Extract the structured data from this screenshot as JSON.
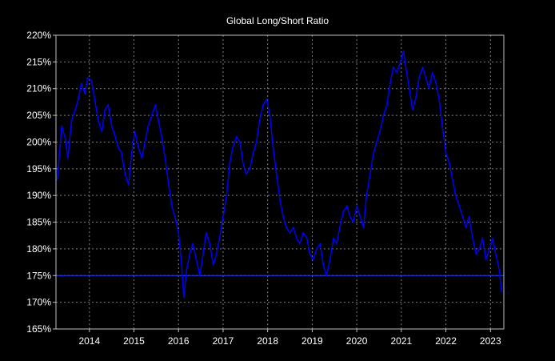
{
  "chart_data": {
    "type": "line",
    "title": "Global Long/Short Ratio",
    "xlabel": "",
    "ylabel": "",
    "x_ticks": [
      "2014",
      "2015",
      "2016",
      "2017",
      "2018",
      "2019",
      "2020",
      "2021",
      "2022",
      "2023"
    ],
    "y_ticks": [
      "220%",
      "215%",
      "210%",
      "205%",
      "200%",
      "195%",
      "190%",
      "185%",
      "180%",
      "175%",
      "170%",
      "165%"
    ],
    "xlim": [
      2013.25,
      2023.3
    ],
    "ylim": [
      165,
      220
    ],
    "grid": true,
    "reference_line": 175,
    "colors": {
      "background": "#000000",
      "series": "#0000ff",
      "reference": "#1e3cff",
      "grid": "#7f7f7f",
      "axis": "#c0c0c0",
      "text": "#ffffff"
    },
    "series": [
      {
        "x": [
          2013.28,
          2013.33,
          2013.38,
          2013.45,
          2013.52,
          2013.6,
          2013.68,
          2013.75,
          2013.82,
          2013.9,
          2013.96,
          2014.05,
          2014.12,
          2014.2,
          2014.28,
          2014.35,
          2014.42,
          2014.5,
          2014.58,
          2014.65,
          2014.72,
          2014.8,
          2014.88,
          2014.95,
          2015.02,
          2015.1,
          2015.18,
          2015.25,
          2015.32,
          2015.4,
          2015.48,
          2015.55,
          2015.62,
          2015.7,
          2015.78,
          2015.85,
          2015.92,
          2016.0,
          2016.06,
          2016.12,
          2016.18,
          2016.25,
          2016.32,
          2016.4,
          2016.48,
          2016.55,
          2016.62,
          2016.7,
          2016.78,
          2016.85,
          2016.92,
          2017.0,
          2017.08,
          2017.15,
          2017.22,
          2017.3,
          2017.38,
          2017.45,
          2017.52,
          2017.6,
          2017.68,
          2017.75,
          2017.82,
          2017.9,
          2017.98,
          2018.05,
          2018.12,
          2018.2,
          2018.28,
          2018.35,
          2018.42,
          2018.5,
          2018.58,
          2018.65,
          2018.72,
          2018.8,
          2018.88,
          2018.95,
          2019.02,
          2019.1,
          2019.18,
          2019.25,
          2019.32,
          2019.4,
          2019.48,
          2019.55,
          2019.62,
          2019.7,
          2019.78,
          2019.85,
          2019.92,
          2020.0,
          2020.08,
          2020.15,
          2020.22,
          2020.3,
          2020.38,
          2020.45,
          2020.52,
          2020.6,
          2020.68,
          2020.75,
          2020.82,
          2020.9,
          2020.98,
          2021.05,
          2021.12,
          2021.18,
          2021.25,
          2021.32,
          2021.4,
          2021.48,
          2021.55,
          2021.62,
          2021.7,
          2021.78,
          2021.85,
          2021.92,
          2022.0,
          2022.08,
          2022.15,
          2022.22,
          2022.3,
          2022.38,
          2022.45,
          2022.52,
          2022.6,
          2022.68,
          2022.75,
          2022.82,
          2022.9,
          2022.98,
          2023.05,
          2023.12,
          2023.2,
          2023.25
        ],
        "values": [
          193,
          198,
          203,
          201,
          197,
          204,
          206,
          208,
          211,
          209,
          212,
          211.5,
          208,
          204,
          202,
          206,
          207,
          203,
          201,
          199,
          198,
          194,
          192,
          198,
          202,
          199,
          197,
          200,
          203,
          205,
          207,
          204,
          201,
          197,
          192,
          188,
          186,
          183,
          178,
          171,
          176,
          179,
          181,
          178,
          175,
          179,
          183,
          181,
          177,
          179,
          182,
          186,
          190,
          196,
          199,
          201,
          200,
          196,
          194,
          195,
          198,
          200,
          204,
          207,
          208,
          205,
          199,
          194,
          189,
          186,
          184,
          183,
          184,
          182,
          181,
          183,
          182,
          179,
          178,
          180,
          181,
          177,
          175,
          178,
          182,
          181,
          184,
          187,
          188,
          186,
          185,
          188,
          186,
          184,
          190,
          194,
          198,
          200,
          202,
          205,
          207,
          211,
          214,
          213,
          215,
          217,
          213,
          210,
          206,
          208,
          212,
          214,
          212,
          210,
          213,
          211,
          208,
          203,
          198,
          196,
          193,
          190,
          188,
          186,
          184,
          186,
          182,
          179,
          180,
          182,
          178,
          180,
          182,
          179,
          176,
          172
        ]
      }
    ]
  }
}
